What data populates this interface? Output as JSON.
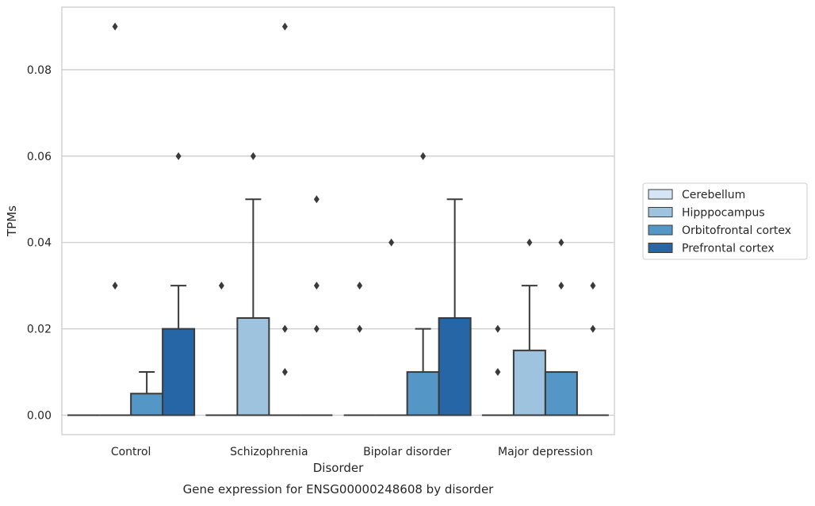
{
  "chart_data": {
    "type": "box",
    "xlabel": "Disorder",
    "ylabel": "TPMs",
    "caption": "Gene expression for ENSG00000248608 by disorder",
    "ylim": [
      -0.0045,
      0.0945
    ],
    "yticks": [
      "0.00",
      "0.02",
      "0.04",
      "0.06",
      "0.08"
    ],
    "yticks_values": [
      0.0,
      0.02,
      0.04,
      0.06,
      0.08
    ],
    "grid": "horizontal",
    "legend_position": "right",
    "categories": [
      "Control",
      "Schizophrenia",
      "Bipolar disorder",
      "Major depression"
    ],
    "series": [
      {
        "name": "Cerebellum",
        "color": "#d6e5f3",
        "boxes": [
          {
            "q1": 0,
            "median": 0,
            "q3": 0,
            "whisker_low": 0,
            "whisker_high": 0,
            "outliers": []
          },
          {
            "q1": 0,
            "median": 0,
            "q3": 0,
            "whisker_low": 0,
            "whisker_high": 0,
            "outliers": [
              0.03
            ]
          },
          {
            "q1": 0,
            "median": 0,
            "q3": 0,
            "whisker_low": 0,
            "whisker_high": 0,
            "outliers": [
              0.02,
              0.03
            ]
          },
          {
            "q1": 0,
            "median": 0,
            "q3": 0,
            "whisker_low": 0,
            "whisker_high": 0,
            "outliers": [
              0.01,
              0.02
            ]
          }
        ]
      },
      {
        "name": "Hipppocampus",
        "color": "#9dc3de",
        "boxes": [
          {
            "q1": 0,
            "median": 0,
            "q3": 0,
            "whisker_low": 0,
            "whisker_high": 0,
            "outliers": [
              0.03,
              0.09
            ]
          },
          {
            "q1": 0,
            "median": 0,
            "q3": 0.0225,
            "whisker_low": 0,
            "whisker_high": 0.05,
            "outliers": [
              0.06
            ]
          },
          {
            "q1": 0,
            "median": 0,
            "q3": 0,
            "whisker_low": 0,
            "whisker_high": 0,
            "outliers": [
              0.04
            ]
          },
          {
            "q1": 0,
            "median": 0,
            "q3": 0.015,
            "whisker_low": 0,
            "whisker_high": 0.03,
            "outliers": [
              0.04
            ]
          }
        ]
      },
      {
        "name": "Orbitofrontal cortex",
        "color": "#5497c6",
        "boxes": [
          {
            "q1": 0,
            "median": 0,
            "q3": 0.005,
            "whisker_low": 0,
            "whisker_high": 0.01,
            "outliers": []
          },
          {
            "q1": 0,
            "median": 0,
            "q3": 0,
            "whisker_low": 0,
            "whisker_high": 0,
            "outliers": [
              0.01,
              0.02,
              0.09
            ]
          },
          {
            "q1": 0,
            "median": 0,
            "q3": 0.01,
            "whisker_low": 0,
            "whisker_high": 0.02,
            "outliers": [
              0.06
            ]
          },
          {
            "q1": 0,
            "median": 0,
            "q3": 0.01,
            "whisker_low": 0,
            "whisker_high": 0.01,
            "outliers": [
              0.03,
              0.04
            ]
          }
        ]
      },
      {
        "name": "Prefrontal cortex",
        "color": "#2766a6",
        "boxes": [
          {
            "q1": 0,
            "median": 0,
            "q3": 0.02,
            "whisker_low": 0,
            "whisker_high": 0.03,
            "outliers": [
              0.06
            ]
          },
          {
            "q1": 0,
            "median": 0,
            "q3": 0,
            "whisker_low": 0,
            "whisker_high": 0,
            "outliers": [
              0.02,
              0.03,
              0.05
            ]
          },
          {
            "q1": 0,
            "median": 0,
            "q3": 0.0225,
            "whisker_low": 0,
            "whisker_high": 0.05,
            "outliers": []
          },
          {
            "q1": 0,
            "median": 0,
            "q3": 0,
            "whisker_low": 0,
            "whisker_high": 0,
            "outliers": [
              0.02,
              0.03
            ]
          }
        ]
      }
    ]
  },
  "styles": {
    "box_edge": "#3a3a3a",
    "grid": "#cccccc",
    "frame": "#cccccc",
    "text": "#262626"
  }
}
